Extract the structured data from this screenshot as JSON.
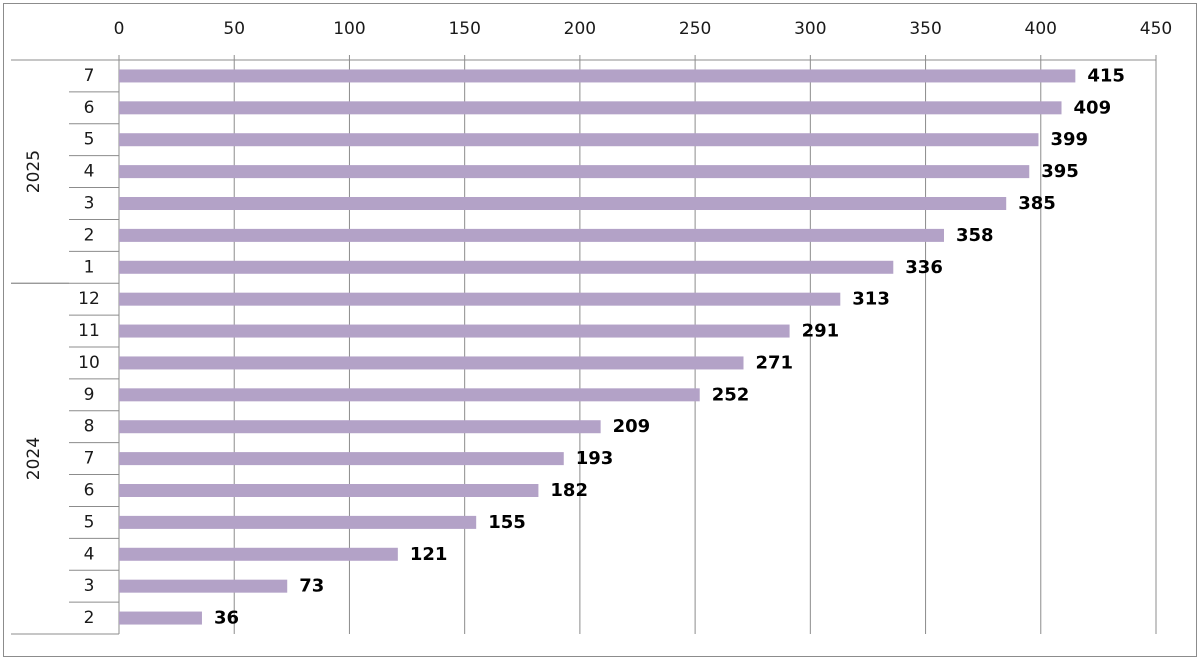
{
  "chart_data": {
    "type": "bar",
    "orientation": "horizontal",
    "title": "",
    "xlabel": "",
    "ylabel": "",
    "xlim": [
      0,
      450
    ],
    "x_ticks": [
      0,
      50,
      100,
      150,
      200,
      250,
      300,
      350,
      400,
      450
    ],
    "x_axis_position": "top",
    "grid": true,
    "legend": "none",
    "bar_color": "#b3a2c7",
    "groups": [
      {
        "label": "2025",
        "categories": [
          "7",
          "6",
          "5",
          "4",
          "3",
          "2",
          "1"
        ],
        "values": [
          415,
          409,
          399,
          395,
          385,
          358,
          336
        ]
      },
      {
        "label": "2024",
        "categories": [
          "12",
          "11",
          "10",
          "9",
          "8",
          "7",
          "6",
          "5",
          "4",
          "3",
          "2"
        ],
        "values": [
          313,
          291,
          271,
          252,
          209,
          193,
          182,
          155,
          121,
          73,
          36
        ]
      }
    ]
  }
}
